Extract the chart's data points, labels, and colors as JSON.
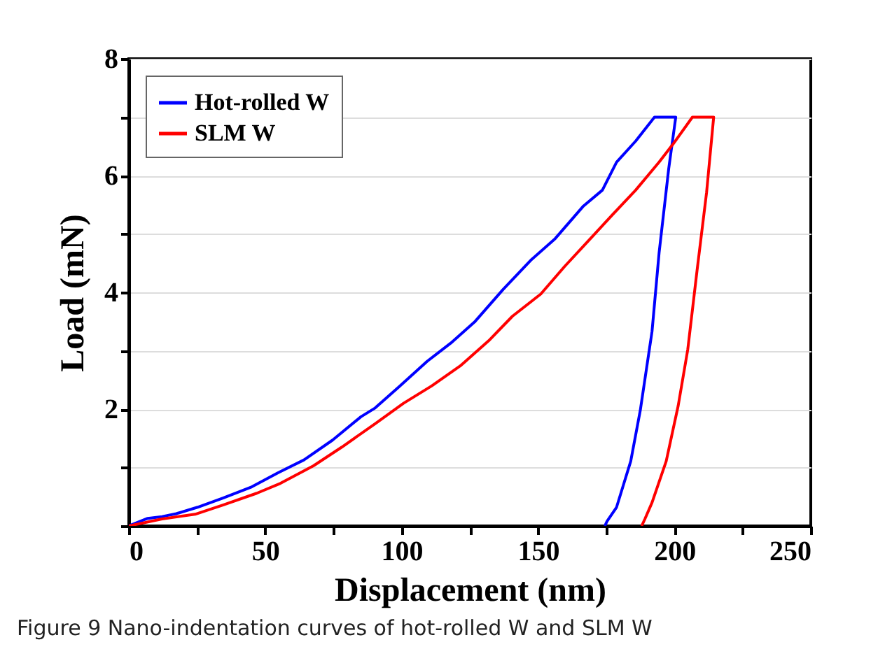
{
  "chart_data": {
    "type": "line",
    "xlabel": "Displacement (nm)",
    "ylabel": "Load (mN)",
    "annotations": [
      "Figure 9  Nano-indentation curves of hot-rolled W and SLM W"
    ],
    "xlim": [
      0,
      250
    ],
    "ylim": [
      0,
      8
    ],
    "xticks": [
      0,
      {
        "value": 25,
        "label": null
      },
      50,
      {
        "value": 75,
        "label": null
      },
      100,
      {
        "value": 125,
        "label": null
      },
      150,
      {
        "value": 175,
        "label": null
      },
      200,
      {
        "value": 225,
        "label": null
      },
      250
    ],
    "yticks": [
      {
        "value": 0,
        "label": null
      },
      {
        "value": 1,
        "label": null
      },
      2,
      {
        "value": 3,
        "label": null
      },
      4,
      {
        "value": 5,
        "label": null
      },
      6,
      {
        "value": 7,
        "label": null
      },
      8
    ],
    "grid": "y",
    "legend": "top left",
    "marker": "none",
    "line_style": "solid",
    "series": [
      {
        "name": "Hot-rolled W",
        "color": "#0000ff",
        "x": [
          0,
          6.9,
          12.2,
          17.4,
          25.2,
          34.7,
          45.1,
          54.7,
          64.2,
          74.7,
          85.1,
          90.3,
          99,
          109.4,
          118,
          126.7,
          137.2,
          147.6,
          156.3,
          166.7,
          173.6,
          178.8,
          185.8,
          192.7,
          200.5,
          197.9,
          194.4,
          191.8,
          187.5,
          184,
          178.8,
          175.3,
          174.5
        ],
        "values": [
          0,
          0.13,
          0.16,
          0.21,
          0.32,
          0.48,
          0.67,
          0.91,
          1.13,
          1.47,
          1.87,
          2.02,
          2.38,
          2.82,
          3.13,
          3.49,
          4.05,
          4.56,
          4.92,
          5.48,
          5.75,
          6.23,
          6.59,
          7.0,
          7.0,
          6.11,
          4.68,
          3.33,
          1.98,
          1.11,
          0.32,
          0.08,
          0
        ]
      },
      {
        "name": "SLM W",
        "color": "#ff0000",
        "x": [
          0,
          12.2,
          24.3,
          34.7,
          46.9,
          55.6,
          67.7,
          78.1,
          90.3,
          100.7,
          111.1,
          121.5,
          131.9,
          140.6,
          151,
          159.7,
          168.4,
          177.1,
          185.8,
          194.4,
          199.7,
          206.6,
          214.4,
          211.8,
          208.3,
          204.9,
          201.4,
          197,
          191.8,
          189.2,
          188
        ],
        "values": [
          0,
          0.12,
          0.2,
          0.36,
          0.56,
          0.73,
          1.03,
          1.35,
          1.75,
          2.1,
          2.4,
          2.74,
          3.17,
          3.59,
          3.97,
          4.44,
          4.88,
          5.32,
          5.75,
          6.23,
          6.55,
          7.0,
          7.0,
          5.71,
          4.37,
          3.02,
          2.06,
          1.11,
          0.4,
          0.12,
          0
        ]
      }
    ]
  }
}
